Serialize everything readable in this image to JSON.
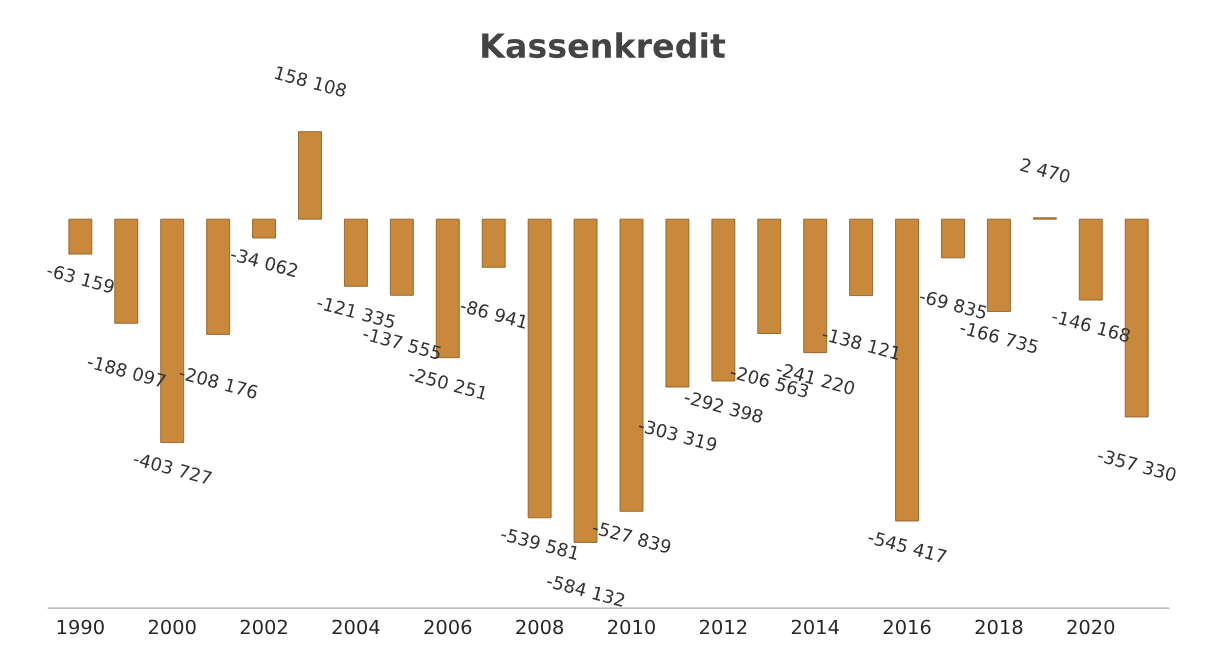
{
  "chart_data": {
    "type": "bar",
    "title": "Kassenkredit",
    "categories": [
      "1990",
      null,
      "2000",
      null,
      "2002",
      null,
      "2004",
      null,
      "2006",
      null,
      "2008",
      null,
      "2010",
      null,
      "2012",
      null,
      "2014",
      null,
      "2016",
      null,
      "2018",
      null,
      "2020",
      null
    ],
    "series": [
      {
        "color": "#c8893c",
        "values": [
          -63159,
          -188097,
          -403727,
          -208176,
          -34062,
          158108,
          -121335,
          -137555,
          -250251,
          -86941,
          -539581,
          -584132,
          -527839,
          -303319,
          -292398,
          -206563,
          -241220,
          -138121,
          -545417,
          -69835,
          -166735,
          2470,
          -146168,
          -357330
        ],
        "value_labels": [
          "-63 159",
          "-188 097",
          "-403 727",
          "-208 176",
          "-34 062",
          "158 108",
          "-121 335",
          "-137 555",
          "-250 251",
          "-86 941",
          "-539 581",
          "-584 132",
          "-527 839",
          "-303 319",
          "-292 398",
          "-206 563",
          "-241 220",
          "-138 121",
          "-545 417",
          "-69 835",
          "-166 735",
          "2 470",
          "-146 168",
          "-357 330"
        ]
      }
    ],
    "tick_labels": "x",
    "grid": false
  }
}
